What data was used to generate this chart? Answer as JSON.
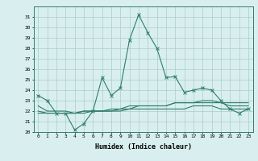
{
  "xlabel": "Humidex (Indice chaleur)",
  "x": [
    0,
    1,
    2,
    3,
    4,
    5,
    6,
    7,
    8,
    9,
    10,
    11,
    12,
    13,
    14,
    15,
    16,
    17,
    18,
    19,
    20,
    21,
    22,
    23
  ],
  "line1": [
    23.5,
    23.0,
    21.8,
    21.8,
    20.2,
    20.8,
    22.0,
    25.2,
    23.5,
    24.2,
    28.8,
    31.2,
    29.5,
    28.0,
    25.2,
    25.3,
    23.8,
    24.0,
    24.2,
    24.0,
    23.0,
    22.2,
    21.8,
    22.2
  ],
  "line2": [
    22.0,
    21.8,
    21.8,
    21.8,
    21.8,
    22.0,
    22.0,
    22.0,
    22.2,
    22.2,
    22.5,
    22.5,
    22.5,
    22.5,
    22.5,
    22.8,
    22.8,
    22.8,
    23.0,
    23.0,
    22.8,
    22.8,
    22.8,
    22.8
  ],
  "line3": [
    21.8,
    21.8,
    21.8,
    21.8,
    21.8,
    21.8,
    22.0,
    22.0,
    22.0,
    22.0,
    22.2,
    22.2,
    22.2,
    22.2,
    22.2,
    22.2,
    22.2,
    22.5,
    22.5,
    22.5,
    22.2,
    22.2,
    22.2,
    22.2
  ],
  "line4": [
    22.5,
    22.0,
    22.0,
    22.0,
    21.8,
    22.0,
    22.0,
    22.0,
    22.0,
    22.2,
    22.2,
    22.5,
    22.5,
    22.5,
    22.5,
    22.8,
    22.8,
    22.8,
    22.8,
    22.8,
    22.8,
    22.5,
    22.5,
    22.5
  ],
  "ylim": [
    20,
    32
  ],
  "yticks": [
    20,
    21,
    22,
    23,
    24,
    25,
    26,
    27,
    28,
    29,
    30,
    31
  ],
  "xticks": [
    0,
    1,
    2,
    3,
    4,
    5,
    6,
    7,
    8,
    9,
    10,
    11,
    12,
    13,
    14,
    15,
    16,
    17,
    18,
    19,
    20,
    21,
    22,
    23
  ],
  "line_color": "#2e7d6e",
  "bg_color": "#d9efef",
  "grid_color": "#aacccc"
}
